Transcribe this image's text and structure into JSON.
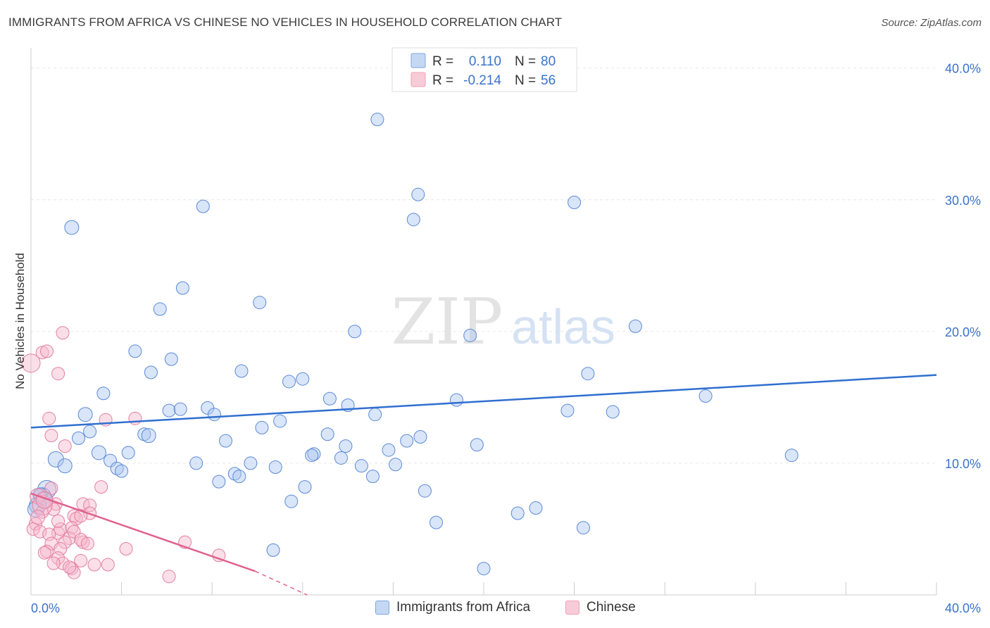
{
  "title": "IMMIGRANTS FROM AFRICA VS CHINESE NO VEHICLES IN HOUSEHOLD CORRELATION CHART",
  "source": "Source: ZipAtlas.com",
  "watermark": {
    "zip": "ZIP",
    "atlas": "atlas"
  },
  "legend_top": [
    {
      "r_label": "R =",
      "r_value": "0.110",
      "n_label": "N =",
      "n_value": "80",
      "color": "#7ea6e0"
    },
    {
      "r_label": "R =",
      "r_value": "-0.214",
      "n_label": "N =",
      "n_value": "56",
      "color": "#f0a0b8"
    }
  ],
  "legend_bottom": [
    {
      "label": "Immigrants from Africa",
      "color": "#7ea6e0"
    },
    {
      "label": "Chinese",
      "color": "#f0a0b8"
    }
  ],
  "chart_data": {
    "type": "scatter",
    "title": "IMMIGRANTS FROM AFRICA VS CHINESE NO VEHICLES IN HOUSEHOLD CORRELATION CHART",
    "xlabel": "",
    "ylabel": "No Vehicles in Household",
    "xlim": [
      0,
      40
    ],
    "ylim": [
      0,
      40
    ],
    "x_tick_labels": [
      "0.0%",
      "40.0%"
    ],
    "y_tick_labels": [
      "10.0%",
      "20.0%",
      "30.0%",
      "40.0%"
    ],
    "y_ticks": [
      10,
      20,
      30,
      40
    ],
    "grid": true,
    "legend_position": "top-center",
    "series": [
      {
        "name": "Immigrants from Africa",
        "color": "#7ea6e0",
        "stroke": "#5b8ad6",
        "trend": {
          "x": [
            0,
            40
          ],
          "y": [
            12.7,
            16.7
          ],
          "color": "#2f6fd0"
        },
        "points": [
          [
            15.3,
            36.1
          ],
          [
            1.8,
            27.9
          ],
          [
            7.6,
            29.5
          ],
          [
            17.1,
            30.4
          ],
          [
            16.9,
            28.5
          ],
          [
            24.0,
            29.8
          ],
          [
            6.7,
            23.3
          ],
          [
            10.1,
            22.2
          ],
          [
            5.7,
            21.7
          ],
          [
            14.3,
            20.0
          ],
          [
            19.4,
            19.7
          ],
          [
            26.7,
            20.4
          ],
          [
            4.6,
            18.5
          ],
          [
            6.2,
            17.9
          ],
          [
            5.3,
            16.9
          ],
          [
            9.3,
            17.0
          ],
          [
            11.4,
            16.2
          ],
          [
            12.0,
            16.4
          ],
          [
            24.6,
            16.8
          ],
          [
            3.2,
            15.3
          ],
          [
            13.2,
            14.9
          ],
          [
            18.8,
            14.8
          ],
          [
            29.8,
            15.1
          ],
          [
            6.1,
            14.0
          ],
          [
            6.6,
            14.1
          ],
          [
            7.8,
            14.2
          ],
          [
            8.1,
            13.7
          ],
          [
            14.0,
            14.4
          ],
          [
            15.2,
            13.7
          ],
          [
            23.7,
            14.0
          ],
          [
            25.7,
            13.9
          ],
          [
            2.4,
            13.7
          ],
          [
            11.0,
            13.2
          ],
          [
            10.2,
            12.7
          ],
          [
            2.6,
            12.4
          ],
          [
            5.0,
            12.2
          ],
          [
            5.2,
            12.1
          ],
          [
            2.1,
            11.9
          ],
          [
            13.1,
            12.2
          ],
          [
            17.2,
            12.0
          ],
          [
            8.6,
            11.7
          ],
          [
            16.6,
            11.7
          ],
          [
            19.7,
            11.4
          ],
          [
            13.9,
            11.3
          ],
          [
            3.0,
            10.8
          ],
          [
            4.3,
            10.8
          ],
          [
            12.5,
            10.7
          ],
          [
            12.4,
            10.6
          ],
          [
            13.7,
            10.4
          ],
          [
            15.8,
            11.0
          ],
          [
            33.6,
            10.6
          ],
          [
            1.1,
            10.3
          ],
          [
            1.5,
            9.8
          ],
          [
            3.5,
            10.2
          ],
          [
            3.8,
            9.6
          ],
          [
            4.0,
            9.4
          ],
          [
            7.3,
            10.0
          ],
          [
            9.7,
            10.0
          ],
          [
            10.8,
            9.7
          ],
          [
            14.6,
            9.8
          ],
          [
            16.1,
            9.9
          ],
          [
            9.0,
            9.2
          ],
          [
            9.2,
            9.0
          ],
          [
            15.1,
            9.0
          ],
          [
            8.3,
            8.6
          ],
          [
            12.1,
            8.2
          ],
          [
            17.4,
            7.9
          ],
          [
            0.7,
            8.0
          ],
          [
            0.5,
            7.5
          ],
          [
            0.6,
            7.2
          ],
          [
            0.3,
            6.8
          ],
          [
            11.5,
            7.1
          ],
          [
            22.3,
            6.6
          ],
          [
            21.5,
            6.2
          ],
          [
            17.9,
            5.5
          ],
          [
            24.4,
            5.1
          ],
          [
            10.7,
            3.4
          ],
          [
            20.0,
            2.0
          ],
          [
            0.4,
            7.6
          ],
          [
            0.2,
            6.5
          ]
        ],
        "sizes": [
          9,
          10,
          9,
          9,
          9,
          9,
          9,
          9,
          9,
          9,
          9,
          9,
          9,
          9,
          9,
          9,
          9,
          9,
          9,
          9,
          9,
          9,
          9,
          9,
          9,
          9,
          9,
          9,
          9,
          9,
          9,
          10,
          9,
          9,
          9,
          9,
          10,
          9,
          9,
          9,
          9,
          9,
          9,
          9,
          10,
          9,
          9,
          9,
          9,
          9,
          9,
          11,
          10,
          9,
          9,
          9,
          9,
          9,
          9,
          9,
          9,
          9,
          9,
          9,
          9,
          9,
          9,
          13,
          12,
          11,
          12,
          9,
          9,
          9,
          9,
          9,
          9,
          9,
          10,
          11
        ]
      },
      {
        "name": "Chinese",
        "color": "#f0a0b8",
        "stroke": "#e37fa0",
        "trend": {
          "x": [
            0,
            9.9,
            12.2
          ],
          "y": [
            7.7,
            1.8,
            0.0
          ],
          "color": "#e0628e"
        },
        "points": [
          [
            0.0,
            17.6
          ],
          [
            1.4,
            19.9
          ],
          [
            0.5,
            18.4
          ],
          [
            0.7,
            18.5
          ],
          [
            1.2,
            16.8
          ],
          [
            0.8,
            13.4
          ],
          [
            3.3,
            13.3
          ],
          [
            4.6,
            13.4
          ],
          [
            1.5,
            11.3
          ],
          [
            0.9,
            12.1
          ],
          [
            3.1,
            8.2
          ],
          [
            0.9,
            8.1
          ],
          [
            0.3,
            7.5
          ],
          [
            1.1,
            6.9
          ],
          [
            2.3,
            6.9
          ],
          [
            2.6,
            6.8
          ],
          [
            0.5,
            6.3
          ],
          [
            1.0,
            6.5
          ],
          [
            1.9,
            6.0
          ],
          [
            2.0,
            5.8
          ],
          [
            2.6,
            6.2
          ],
          [
            2.2,
            6.0
          ],
          [
            0.2,
            5.4
          ],
          [
            0.1,
            5.0
          ],
          [
            0.4,
            4.8
          ],
          [
            1.2,
            4.7
          ],
          [
            1.3,
            5.0
          ],
          [
            1.8,
            5.1
          ],
          [
            0.8,
            4.6
          ],
          [
            1.7,
            4.3
          ],
          [
            1.9,
            4.8
          ],
          [
            2.3,
            4.0
          ],
          [
            0.9,
            3.9
          ],
          [
            1.5,
            4.0
          ],
          [
            2.2,
            4.2
          ],
          [
            2.5,
            3.9
          ],
          [
            4.2,
            3.5
          ],
          [
            6.8,
            4.0
          ],
          [
            1.3,
            3.5
          ],
          [
            0.7,
            3.3
          ],
          [
            0.6,
            3.2
          ],
          [
            8.3,
            3.0
          ],
          [
            1.2,
            2.8
          ],
          [
            1.4,
            2.4
          ],
          [
            1.0,
            2.4
          ],
          [
            2.2,
            2.6
          ],
          [
            2.8,
            2.3
          ],
          [
            3.4,
            2.3
          ],
          [
            1.8,
            2.0
          ],
          [
            1.9,
            1.7
          ],
          [
            6.1,
            1.4
          ],
          [
            1.7,
            2.1
          ],
          [
            0.5,
            6.8
          ],
          [
            0.3,
            5.9
          ],
          [
            0.6,
            7.2
          ],
          [
            1.2,
            5.6
          ]
        ],
        "sizes": [
          13,
          9,
          9,
          9,
          9,
          9,
          9,
          9,
          9,
          9,
          9,
          9,
          11,
          9,
          9,
          9,
          9,
          9,
          9,
          9,
          9,
          9,
          9,
          9,
          9,
          9,
          9,
          9,
          9,
          9,
          9,
          9,
          9,
          9,
          9,
          9,
          9,
          9,
          9,
          9,
          9,
          9,
          9,
          9,
          9,
          9,
          9,
          9,
          9,
          9,
          9,
          9,
          14,
          10,
          12,
          9
        ]
      }
    ]
  }
}
